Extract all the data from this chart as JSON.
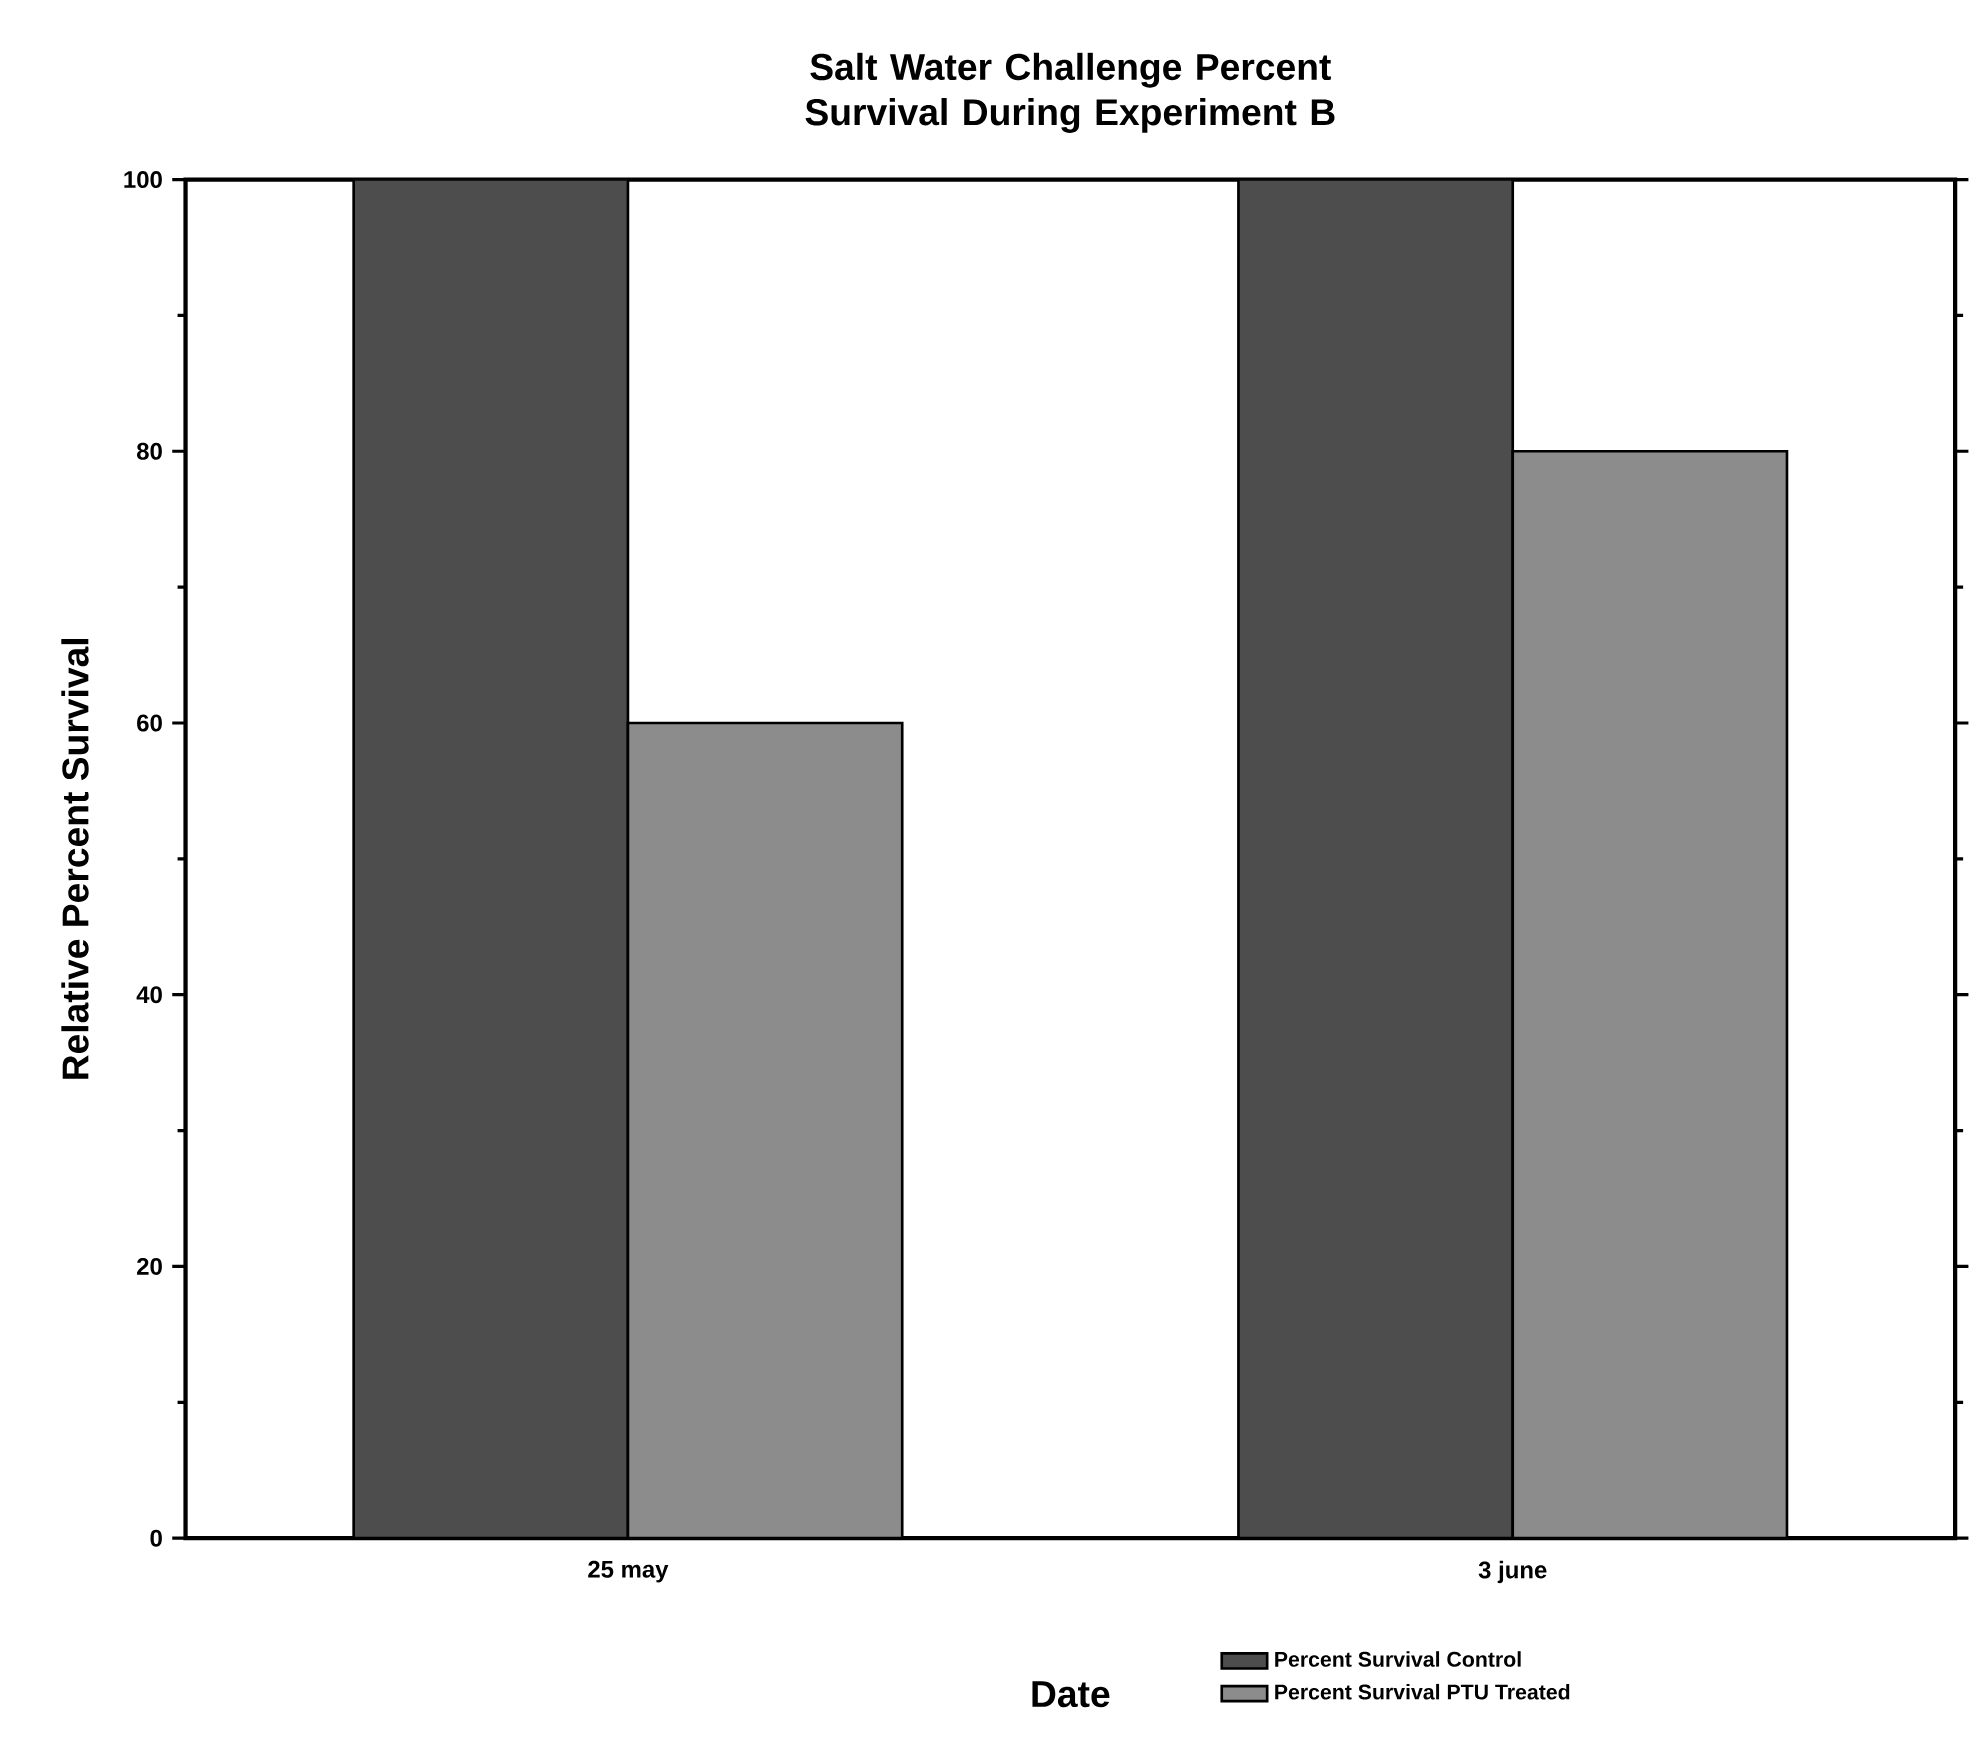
{
  "chart_data": {
    "type": "bar",
    "title": "Salt Water Challenge Percent Survival During Experiment B",
    "xlabel": "Date",
    "ylabel": "Relative Percent Survival",
    "categories": [
      "25 may",
      "3 june"
    ],
    "series": [
      {
        "name": "Percent Survival Control",
        "color": "#4d4d4d",
        "values": [
          100,
          100
        ]
      },
      {
        "name": "Percent Survival PTU Treated",
        "color": "#8c8c8c",
        "values": [
          60,
          80
        ]
      }
    ],
    "ylim": [
      0,
      100
    ],
    "yticks": [
      0,
      {
        "value": 10,
        "label": null
      },
      20,
      {
        "value": 30,
        "label": null
      },
      40,
      {
        "value": 50,
        "label": null
      },
      60,
      {
        "value": 70,
        "label": null
      },
      80,
      {
        "value": 90,
        "label": null
      },
      100
    ],
    "grid": false,
    "legend": "bottom right"
  }
}
